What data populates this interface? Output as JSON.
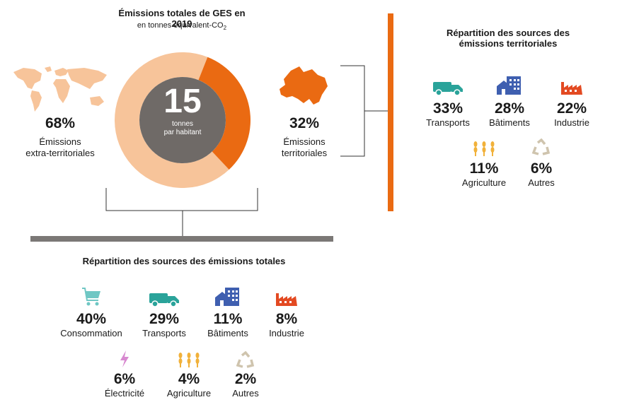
{
  "header": {
    "title": "Émissions totales de GES en 2019",
    "subtitle": "en tonnes équivalent-CO",
    "subtitle_sub": "2"
  },
  "donut": {
    "center_value": "15",
    "center_label_line1": "tonnes",
    "center_label_line2": "par habitant",
    "extra_share": 0.68,
    "territorial_share": 0.32,
    "colors": {
      "extra": "#f7c49a",
      "territorial": "#ea6a12",
      "center": "#6f6a67"
    }
  },
  "left": {
    "pct": "68%",
    "label_line1": "Émissions",
    "label_line2": "extra-territoriales"
  },
  "right": {
    "pct": "32%",
    "label_line1": "Émissions",
    "label_line2": "territoriales"
  },
  "territorial_panel": {
    "title_line1": "Répartition des sources des",
    "title_line2": "émissions territoriales",
    "items": [
      {
        "icon": "truck-icon",
        "pct": "33%",
        "label": "Transports"
      },
      {
        "icon": "buildings-icon",
        "pct": "28%",
        "label": "Bâtiments"
      },
      {
        "icon": "factory-icon",
        "pct": "22%",
        "label": "Industrie"
      },
      {
        "icon": "wheat-icon",
        "pct": "11%",
        "label": "Agriculture"
      },
      {
        "icon": "recycle-icon",
        "pct": "6%",
        "label": "Autres"
      }
    ]
  },
  "total_panel": {
    "title": "Répartition des sources des émissions totales",
    "items": [
      {
        "icon": "cart-icon",
        "pct": "40%",
        "label": "Consommation"
      },
      {
        "icon": "truck-icon",
        "pct": "29%",
        "label": "Transports"
      },
      {
        "icon": "buildings-icon",
        "pct": "11%",
        "label": "Bâtiments"
      },
      {
        "icon": "factory-icon",
        "pct": "8%",
        "label": "Industrie"
      },
      {
        "icon": "lightning-icon",
        "pct": "6%",
        "label": "Électricité"
      },
      {
        "icon": "wheat-icon",
        "pct": "4%",
        "label": "Agriculture"
      },
      {
        "icon": "recycle-icon",
        "pct": "2%",
        "label": "Autres"
      }
    ]
  },
  "colors": {
    "orange_bar": "#ea6a12",
    "grey_bar": "#7b7876",
    "map": "#f7c49a",
    "teal": "#2aa39a",
    "blue": "#3f5fb0",
    "red": "#e34a22",
    "yellow": "#f1b13a",
    "beige": "#cfc4ae",
    "cart": "#6fc7c4",
    "lightning": "#d889d0"
  }
}
